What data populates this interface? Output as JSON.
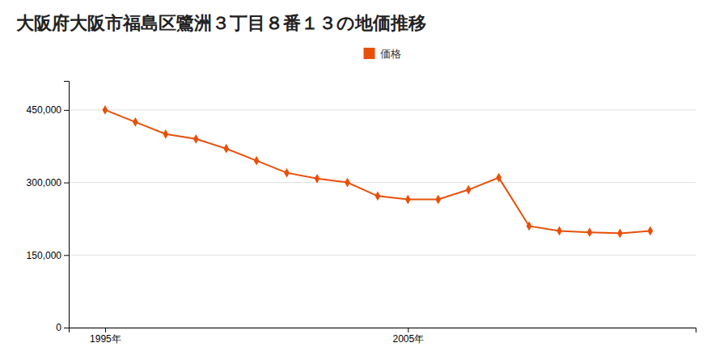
{
  "chart_data": {
    "type": "line",
    "title": "大阪府大阪市福島区鷺洲３丁目８番１３の地価推移",
    "x": [
      1995,
      1996,
      1997,
      1998,
      1999,
      2000,
      2001,
      2002,
      2003,
      2004,
      2005,
      2006,
      2007,
      2008,
      2009,
      2010,
      2011,
      2012,
      2013
    ],
    "series": [
      {
        "name": "価格",
        "color": "#e8500a",
        "marker": "diamond",
        "values": [
          450000,
          425000,
          400000,
          390000,
          370000,
          345000,
          320000,
          308000,
          300000,
          272000,
          265000,
          265000,
          285000,
          310000,
          210000,
          200000,
          197000,
          195000,
          200000
        ]
      }
    ],
    "xlim": [
      1993.8,
      2014.5
    ],
    "xticks": [
      {
        "value": 1995,
        "label": "1995年"
      },
      {
        "value": 2005,
        "label": "2005年"
      }
    ],
    "ylim": [
      0,
      510000
    ],
    "yticks": [
      0,
      {
        "value": 150000,
        "label": "150,000"
      },
      {
        "value": 300000,
        "label": "300,000"
      },
      {
        "value": 450000,
        "label": "450,000"
      }
    ],
    "grid": "y",
    "legend": "top"
  }
}
